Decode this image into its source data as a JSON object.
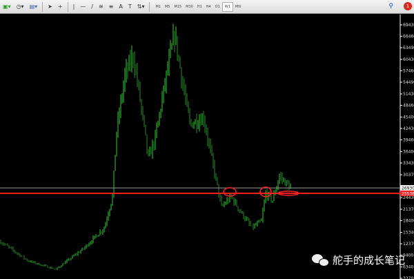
{
  "toolbar": {
    "tools": [
      "new-chart-icon",
      "clock-icon",
      "template-icon",
      "cursor-icon",
      "crosshair-icon",
      "vertical-line-icon",
      "horizontal-line-icon",
      "trendline-icon",
      "fibonacci-icon",
      "channel-icon",
      "text-icon",
      "label-icon",
      "arrow-icon"
    ],
    "text_tool": "A",
    "timeframes": [
      "M1",
      "M5",
      "M15",
      "M30",
      "H1",
      "H4",
      "D1",
      "W1",
      "MN"
    ],
    "active_timeframe": "W1",
    "notification_count": "1"
  },
  "chart": {
    "bull_color": "#33cc33",
    "bear_color": "#ffffff",
    "background": "#000000",
    "price_axis": [
      "69430",
      "66460",
      "63490",
      "60430",
      "57460",
      "54490",
      "51430",
      "48460",
      "45400",
      "42430",
      "39460",
      "36400",
      "33430",
      "30370",
      "24430",
      "21370",
      "18400",
      "15340",
      "12370",
      "9400",
      "6340",
      "3370"
    ],
    "current_price": "26930",
    "support_level": "25536",
    "support_color": "#ff2020",
    "price_path": [
      [
        0,
        12900
      ],
      [
        20,
        7900
      ],
      [
        40,
        5700
      ],
      [
        60,
        11100
      ],
      [
        75,
        16500
      ],
      [
        81,
        24600
      ],
      [
        84,
        41700
      ],
      [
        90,
        56100
      ],
      [
        96,
        61500
      ],
      [
        100,
        52500
      ],
      [
        107,
        34500
      ],
      [
        112,
        39900
      ],
      [
        120,
        56100
      ],
      [
        126,
        66900
      ],
      [
        131,
        56100
      ],
      [
        137,
        43500
      ],
      [
        147,
        45300
      ],
      [
        155,
        30900
      ],
      [
        160,
        21900
      ],
      [
        167,
        24600
      ],
      [
        175,
        20100
      ],
      [
        182,
        16500
      ],
      [
        189,
        18300
      ],
      [
        192,
        25500
      ],
      [
        197,
        23700
      ],
      [
        202,
        30000
      ],
      [
        210,
        27000
      ]
    ],
    "highlight_circles": 3
  },
  "watermark": "舵手的成长笔记"
}
